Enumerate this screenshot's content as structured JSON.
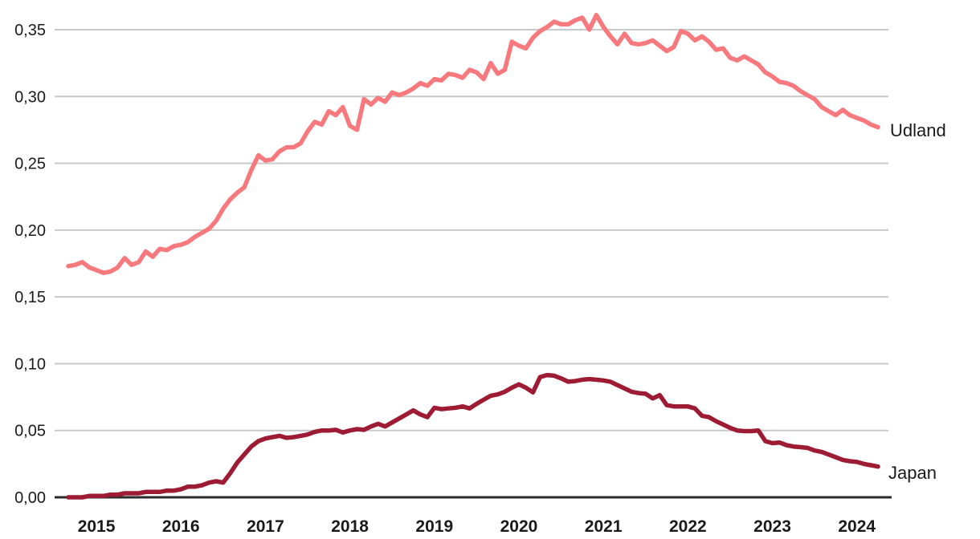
{
  "chart_data": {
    "type": "line",
    "title": "",
    "frequency": "monthly",
    "start_month": "2014-09",
    "end_month": "2024-04",
    "grid": "horizontal",
    "decimal_separator": ",",
    "legend_position": "line-end-right",
    "ylim": [
      0,
      0.35
    ],
    "y_ticks": [
      0.35,
      0.3,
      0.25,
      0.2,
      0.15,
      0.1,
      0.05,
      0.0
    ],
    "y_tick_labels": [
      "0,35",
      "0,30",
      "0,25",
      "0,20",
      "0,15",
      "0,10",
      "0,05",
      "0,00"
    ],
    "x_tick_labels": [
      "2015",
      "2016",
      "2017",
      "2018",
      "2019",
      "2020",
      "2021",
      "2022",
      "2023",
      "2024"
    ],
    "series": [
      {
        "name": "Udland",
        "color": "#F8797D",
        "values": [
          0.173,
          0.174,
          0.176,
          0.172,
          0.17,
          0.168,
          0.169,
          0.172,
          0.179,
          0.174,
          0.176,
          0.184,
          0.18,
          0.186,
          0.185,
          0.188,
          0.189,
          0.191,
          0.195,
          0.198,
          0.201,
          0.207,
          0.216,
          0.223,
          0.228,
          0.232,
          0.245,
          0.256,
          0.252,
          0.253,
          0.259,
          0.262,
          0.262,
          0.265,
          0.274,
          0.281,
          0.279,
          0.289,
          0.286,
          0.292,
          0.278,
          0.275,
          0.298,
          0.294,
          0.299,
          0.296,
          0.303,
          0.301,
          0.303,
          0.306,
          0.31,
          0.308,
          0.313,
          0.312,
          0.317,
          0.316,
          0.314,
          0.32,
          0.318,
          0.313,
          0.325,
          0.317,
          0.32,
          0.341,
          0.338,
          0.336,
          0.344,
          0.349,
          0.352,
          0.356,
          0.354,
          0.354,
          0.357,
          0.359,
          0.35,
          0.361,
          0.352,
          0.345,
          0.339,
          0.347,
          0.34,
          0.339,
          0.34,
          0.342,
          0.338,
          0.334,
          0.337,
          0.349,
          0.347,
          0.342,
          0.345,
          0.341,
          0.335,
          0.336,
          0.329,
          0.327,
          0.33,
          0.327,
          0.324,
          0.318,
          0.315,
          0.311,
          0.31,
          0.308,
          0.304,
          0.301,
          0.298,
          0.292,
          0.289,
          0.286,
          0.29,
          0.286,
          0.284,
          0.282,
          0.279,
          0.277
        ]
      },
      {
        "name": "Japan",
        "color": "#9E1B34",
        "values": [
          0.0,
          0.0,
          0.0,
          0.001,
          0.001,
          0.001,
          0.002,
          0.002,
          0.003,
          0.003,
          0.003,
          0.004,
          0.004,
          0.004,
          0.005,
          0.005,
          0.006,
          0.008,
          0.008,
          0.009,
          0.011,
          0.012,
          0.011,
          0.018,
          0.026,
          0.032,
          0.038,
          0.042,
          0.044,
          0.045,
          0.046,
          0.0445,
          0.045,
          0.046,
          0.047,
          0.049,
          0.05,
          0.05,
          0.0505,
          0.0485,
          0.05,
          0.051,
          0.0505,
          0.053,
          0.055,
          0.053,
          0.056,
          0.059,
          0.062,
          0.065,
          0.062,
          0.06,
          0.067,
          0.066,
          0.0665,
          0.067,
          0.068,
          0.0665,
          0.07,
          0.073,
          0.076,
          0.077,
          0.079,
          0.082,
          0.0845,
          0.082,
          0.0785,
          0.09,
          0.0915,
          0.091,
          0.089,
          0.0865,
          0.087,
          0.088,
          0.0885,
          0.088,
          0.0875,
          0.0865,
          0.084,
          0.0815,
          0.079,
          0.078,
          0.0775,
          0.074,
          0.0765,
          0.069,
          0.068,
          0.068,
          0.068,
          0.0665,
          0.061,
          0.06,
          0.057,
          0.0545,
          0.052,
          0.05,
          0.0495,
          0.0495,
          0.05,
          0.042,
          0.0405,
          0.041,
          0.039,
          0.038,
          0.0375,
          0.037,
          0.035,
          0.034,
          0.032,
          0.03,
          0.028,
          0.027,
          0.0265,
          0.025,
          0.024,
          0.023
        ]
      }
    ]
  },
  "labels": {
    "udland": "Udland",
    "japan": "Japan"
  },
  "colors": {
    "grid": "#C9C9C9",
    "axis": "#2B2B2B",
    "text": "#1A1A1A",
    "udland_line": "#F8797D",
    "japan_line": "#9E1B34"
  }
}
